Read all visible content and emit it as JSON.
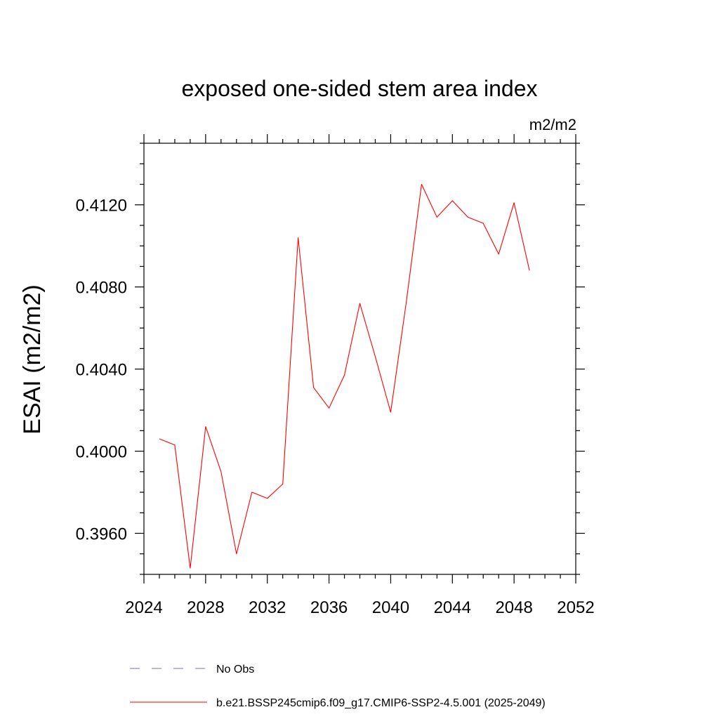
{
  "chart_data": {
    "type": "line",
    "title": "exposed one-sided stem area index",
    "units": "m2/m2",
    "ylabel": "ESAI  (m2/m2)",
    "xlabel": "",
    "xlim": [
      2024,
      2052
    ],
    "ylim": [
      0.394,
      0.415
    ],
    "xticks": [
      2024,
      2028,
      2032,
      2036,
      2040,
      2044,
      2048,
      2052
    ],
    "xtick_labels": [
      "2024",
      "2028",
      "2032",
      "2036",
      "2040",
      "2044",
      "2048",
      "2052"
    ],
    "yticks": [
      0.396,
      0.4,
      0.404,
      0.408,
      0.412
    ],
    "ytick_labels": [
      "0.3960",
      "0.4000",
      "0.4040",
      "0.4080",
      "0.4120"
    ],
    "grid": false,
    "legend_position": "bottom",
    "series": [
      {
        "name": "No Obs",
        "color": "#7b6fc4",
        "style": "dashed",
        "x": [],
        "y": []
      },
      {
        "name": "b.e21.BSSP245cmip6.f09_g17.CMIP6-SSP2-4.5.001 (2025-2049)",
        "color": "#ff0000",
        "style": "solid",
        "x": [
          2025,
          2026,
          2027,
          2028,
          2029,
          2030,
          2031,
          2032,
          2033,
          2034,
          2035,
          2036,
          2037,
          2038,
          2039,
          2040,
          2041,
          2042,
          2043,
          2044,
          2045,
          2046,
          2047,
          2048,
          2049
        ],
        "y": [
          0.4006,
          0.4003,
          0.3943,
          0.4012,
          0.399,
          0.395,
          0.398,
          0.3977,
          0.3984,
          0.4104,
          0.4031,
          0.4021,
          0.4037,
          0.4072,
          0.4046,
          0.4019,
          0.4072,
          0.413,
          0.4114,
          0.4122,
          0.4114,
          0.4111,
          0.4096,
          0.4121,
          0.4088
        ]
      }
    ]
  }
}
